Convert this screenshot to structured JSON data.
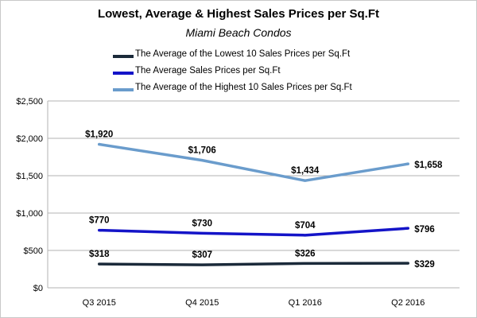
{
  "chart_data": {
    "type": "line",
    "title": "Lowest, Average & Highest Sales Prices per Sq.Ft",
    "subtitle": "Miami Beach Condos",
    "categories": [
      "Q3 2015",
      "Q4 2015",
      "Q1 2016",
      "Q2 2016"
    ],
    "yticks": [
      "$0",
      "$500",
      "$1,000",
      "$1,500",
      "$2,000",
      "$2,500"
    ],
    "ylim": [
      0,
      2500
    ],
    "grid": true,
    "legend_position": "top",
    "series": [
      {
        "name": "The Average of the Lowest 10 Sales Prices per Sq.Ft",
        "color": "#1b2a3a",
        "values": [
          318,
          307,
          326,
          329
        ],
        "labels": [
          "$318",
          "$307",
          "$326",
          "$329"
        ]
      },
      {
        "name": "The Average Sales Prices per Sq.Ft",
        "color": "#1414c8",
        "values": [
          770,
          730,
          704,
          796
        ],
        "labels": [
          "$770",
          "$730",
          "$704",
          "$796"
        ]
      },
      {
        "name": "The Average of the Highest 10 Sales Prices per Sq.Ft",
        "color": "#6a9ccc",
        "values": [
          1920,
          1706,
          1434,
          1658
        ],
        "labels": [
          "$1,920",
          "$1,706",
          "$1,434",
          "$1,658"
        ]
      }
    ]
  }
}
